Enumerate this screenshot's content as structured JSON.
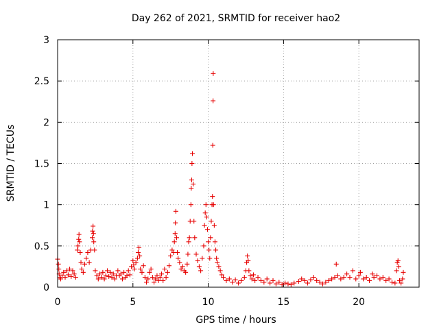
{
  "chart_data": {
    "type": "scatter",
    "title": "Day 262 of 2021, SRMTID for receiver hao2",
    "xlabel": "GPS time / hours",
    "ylabel": "SRMTID / TECUs",
    "xlim": [
      0,
      24
    ],
    "ylim": [
      0,
      3
    ],
    "xticks": [
      0,
      5,
      10,
      15,
      20
    ],
    "xtick_labels": [
      "0",
      "5",
      "10",
      "15",
      "20"
    ],
    "yticks": [
      0,
      0.5,
      1,
      1.5,
      2,
      2.5,
      3
    ],
    "ytick_labels": [
      "0",
      "0.5",
      "1",
      "1.5",
      "2",
      "2.5",
      "3"
    ],
    "grid": true,
    "marker": "+",
    "series": [
      {
        "name": "SRMTID",
        "color": "#e60000",
        "points": [
          [
            0.0,
            0.34
          ],
          [
            0.05,
            0.28
          ],
          [
            0.08,
            0.22
          ],
          [
            0.1,
            0.16
          ],
          [
            0.15,
            0.12
          ],
          [
            0.2,
            0.1
          ],
          [
            0.3,
            0.14
          ],
          [
            0.4,
            0.18
          ],
          [
            0.5,
            0.12
          ],
          [
            0.6,
            0.2
          ],
          [
            0.7,
            0.15
          ],
          [
            0.8,
            0.22
          ],
          [
            0.9,
            0.13
          ],
          [
            1.0,
            0.2
          ],
          [
            1.1,
            0.16
          ],
          [
            1.2,
            0.12
          ],
          [
            1.3,
            0.45
          ],
          [
            1.35,
            0.5
          ],
          [
            1.4,
            0.58
          ],
          [
            1.42,
            0.64
          ],
          [
            1.45,
            0.55
          ],
          [
            1.5,
            0.42
          ],
          [
            1.55,
            0.3
          ],
          [
            1.6,
            0.22
          ],
          [
            1.7,
            0.18
          ],
          [
            1.8,
            0.28
          ],
          [
            1.9,
            0.35
          ],
          [
            2.0,
            0.42
          ],
          [
            2.1,
            0.3
          ],
          [
            2.2,
            0.45
          ],
          [
            2.3,
            0.6
          ],
          [
            2.32,
            0.68
          ],
          [
            2.35,
            0.74
          ],
          [
            2.38,
            0.65
          ],
          [
            2.4,
            0.55
          ],
          [
            2.45,
            0.45
          ],
          [
            2.5,
            0.2
          ],
          [
            2.6,
            0.14
          ],
          [
            2.7,
            0.1
          ],
          [
            2.8,
            0.16
          ],
          [
            2.9,
            0.12
          ],
          [
            3.0,
            0.18
          ],
          [
            3.1,
            0.1
          ],
          [
            3.2,
            0.14
          ],
          [
            3.3,
            0.2
          ],
          [
            3.4,
            0.13
          ],
          [
            3.5,
            0.18
          ],
          [
            3.6,
            0.12
          ],
          [
            3.7,
            0.16
          ],
          [
            3.8,
            0.1
          ],
          [
            3.9,
            0.14
          ],
          [
            4.0,
            0.2
          ],
          [
            4.1,
            0.14
          ],
          [
            4.2,
            0.16
          ],
          [
            4.3,
            0.1
          ],
          [
            4.4,
            0.18
          ],
          [
            4.5,
            0.12
          ],
          [
            4.6,
            0.14
          ],
          [
            4.7,
            0.2
          ],
          [
            4.8,
            0.15
          ],
          [
            4.9,
            0.25
          ],
          [
            5.0,
            0.32
          ],
          [
            5.05,
            0.27
          ],
          [
            5.1,
            0.22
          ],
          [
            5.2,
            0.3
          ],
          [
            5.3,
            0.35
          ],
          [
            5.35,
            0.42
          ],
          [
            5.4,
            0.48
          ],
          [
            5.45,
            0.38
          ],
          [
            5.5,
            0.22
          ],
          [
            5.6,
            0.18
          ],
          [
            5.7,
            0.26
          ],
          [
            5.8,
            0.12
          ],
          [
            5.9,
            0.06
          ],
          [
            6.0,
            0.1
          ],
          [
            6.1,
            0.18
          ],
          [
            6.2,
            0.22
          ],
          [
            6.3,
            0.12
          ],
          [
            6.4,
            0.06
          ],
          [
            6.5,
            0.1
          ],
          [
            6.6,
            0.14
          ],
          [
            6.7,
            0.08
          ],
          [
            6.8,
            0.12
          ],
          [
            6.9,
            0.16
          ],
          [
            7.0,
            0.08
          ],
          [
            7.1,
            0.22
          ],
          [
            7.2,
            0.12
          ],
          [
            7.3,
            0.18
          ],
          [
            7.4,
            0.26
          ],
          [
            7.5,
            0.38
          ],
          [
            7.6,
            0.45
          ],
          [
            7.7,
            0.42
          ],
          [
            7.75,
            0.55
          ],
          [
            7.8,
            0.65
          ],
          [
            7.82,
            0.78
          ],
          [
            7.85,
            0.92
          ],
          [
            7.9,
            0.6
          ],
          [
            7.95,
            0.42
          ],
          [
            8.0,
            0.35
          ],
          [
            8.1,
            0.3
          ],
          [
            8.2,
            0.22
          ],
          [
            8.3,
            0.25
          ],
          [
            8.4,
            0.2
          ],
          [
            8.5,
            0.18
          ],
          [
            8.6,
            0.28
          ],
          [
            8.65,
            0.4
          ],
          [
            8.7,
            0.55
          ],
          [
            8.75,
            0.6
          ],
          [
            8.8,
            0.8
          ],
          [
            8.85,
            1.0
          ],
          [
            8.87,
            1.2
          ],
          [
            8.9,
            1.3
          ],
          [
            8.92,
            1.5
          ],
          [
            8.95,
            1.62
          ],
          [
            9.0,
            1.25
          ],
          [
            9.05,
            0.8
          ],
          [
            9.1,
            0.6
          ],
          [
            9.2,
            0.4
          ],
          [
            9.3,
            0.32
          ],
          [
            9.4,
            0.25
          ],
          [
            9.5,
            0.2
          ],
          [
            9.6,
            0.35
          ],
          [
            9.7,
            0.5
          ],
          [
            9.75,
            0.75
          ],
          [
            9.8,
            0.9
          ],
          [
            9.85,
            1.0
          ],
          [
            9.9,
            0.85
          ],
          [
            9.95,
            0.7
          ],
          [
            10.0,
            0.55
          ],
          [
            10.05,
            0.45
          ],
          [
            10.1,
            0.35
          ],
          [
            10.15,
            0.6
          ],
          [
            10.2,
            0.8
          ],
          [
            10.25,
            1.0
          ],
          [
            10.28,
            1.1
          ],
          [
            10.3,
            1.72
          ],
          [
            10.32,
            2.26
          ],
          [
            10.33,
            2.59
          ],
          [
            10.35,
            1.0
          ],
          [
            10.4,
            0.75
          ],
          [
            10.45,
            0.55
          ],
          [
            10.5,
            0.45
          ],
          [
            10.55,
            0.35
          ],
          [
            10.6,
            0.3
          ],
          [
            10.7,
            0.25
          ],
          [
            10.8,
            0.2
          ],
          [
            10.9,
            0.15
          ],
          [
            11.0,
            0.12
          ],
          [
            11.2,
            0.08
          ],
          [
            11.4,
            0.1
          ],
          [
            11.6,
            0.06
          ],
          [
            11.8,
            0.09
          ],
          [
            12.0,
            0.05
          ],
          [
            12.2,
            0.08
          ],
          [
            12.4,
            0.12
          ],
          [
            12.5,
            0.2
          ],
          [
            12.55,
            0.3
          ],
          [
            12.6,
            0.38
          ],
          [
            12.65,
            0.32
          ],
          [
            12.7,
            0.2
          ],
          [
            12.8,
            0.14
          ],
          [
            12.9,
            0.1
          ],
          [
            13.0,
            0.15
          ],
          [
            13.1,
            0.08
          ],
          [
            13.3,
            0.12
          ],
          [
            13.5,
            0.08
          ],
          [
            13.7,
            0.06
          ],
          [
            13.9,
            0.1
          ],
          [
            14.1,
            0.05
          ],
          [
            14.3,
            0.08
          ],
          [
            14.5,
            0.04
          ],
          [
            14.7,
            0.06
          ],
          [
            14.9,
            0.03
          ],
          [
            15.1,
            0.05
          ],
          [
            15.3,
            0.04
          ],
          [
            15.5,
            0.03
          ],
          [
            15.7,
            0.05
          ],
          [
            16.0,
            0.07
          ],
          [
            16.2,
            0.1
          ],
          [
            16.4,
            0.08
          ],
          [
            16.6,
            0.05
          ],
          [
            16.8,
            0.09
          ],
          [
            17.0,
            0.12
          ],
          [
            17.2,
            0.08
          ],
          [
            17.4,
            0.06
          ],
          [
            17.6,
            0.04
          ],
          [
            17.8,
            0.06
          ],
          [
            18.0,
            0.08
          ],
          [
            18.2,
            0.1
          ],
          [
            18.4,
            0.12
          ],
          [
            18.5,
            0.28
          ],
          [
            18.6,
            0.14
          ],
          [
            18.8,
            0.1
          ],
          [
            19.0,
            0.12
          ],
          [
            19.2,
            0.16
          ],
          [
            19.4,
            0.12
          ],
          [
            19.6,
            0.2
          ],
          [
            19.8,
            0.1
          ],
          [
            20.0,
            0.14
          ],
          [
            20.1,
            0.18
          ],
          [
            20.3,
            0.1
          ],
          [
            20.5,
            0.12
          ],
          [
            20.7,
            0.08
          ],
          [
            20.9,
            0.16
          ],
          [
            21.0,
            0.12
          ],
          [
            21.2,
            0.14
          ],
          [
            21.4,
            0.1
          ],
          [
            21.6,
            0.12
          ],
          [
            21.8,
            0.08
          ],
          [
            22.0,
            0.1
          ],
          [
            22.2,
            0.06
          ],
          [
            22.4,
            0.05
          ],
          [
            22.5,
            0.2
          ],
          [
            22.55,
            0.3
          ],
          [
            22.6,
            0.32
          ],
          [
            22.65,
            0.25
          ],
          [
            22.7,
            0.08
          ],
          [
            22.8,
            0.05
          ],
          [
            22.9,
            0.1
          ],
          [
            22.95,
            0.18
          ]
        ]
      }
    ]
  }
}
